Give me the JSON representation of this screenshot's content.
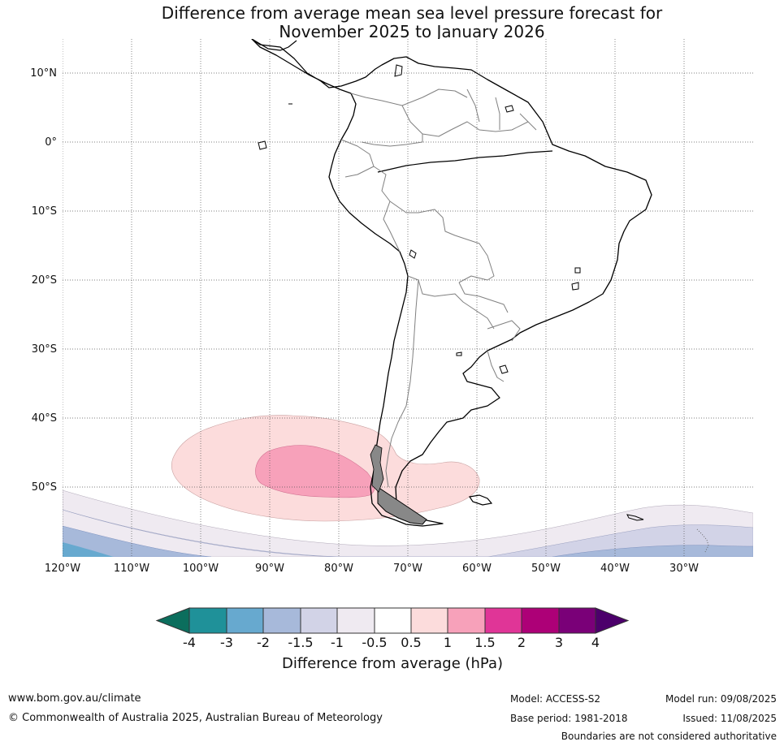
{
  "title": {
    "line1": "Difference from average mean sea level pressure forecast for",
    "line2": "November 2025 to January 2026"
  },
  "map": {
    "lat_labels": [
      "10°N",
      "0°",
      "10°S",
      "20°S",
      "30°S",
      "40°S",
      "50°S"
    ],
    "lon_labels": [
      "120°W",
      "110°W",
      "100°W",
      "90°W",
      "80°W",
      "70°W",
      "60°W",
      "50°W",
      "40°W",
      "30°W"
    ],
    "colors": {
      "pos_0_5_1": "#fcdcdc",
      "pos_1_1_5": "#f7a1ba",
      "neg_0_5_1": "#efeaf1",
      "neg_1_1_5": "#d2d3e7",
      "neg_1_5_2": "#a7b9da",
      "neg_2_3": "#67a9cf",
      "coast": "#000000",
      "borders": "#808080",
      "grid": "#555555"
    }
  },
  "colorbar": {
    "title": "Difference from average (hPa)",
    "ticks": [
      "-4",
      "-3",
      "-2",
      "-1.5",
      "-1",
      "-0.5",
      "0.5",
      "1",
      "1.5",
      "2",
      "3",
      "4"
    ],
    "colors": [
      "#0b6e5d",
      "#1f9199",
      "#67a9cf",
      "#a7b9da",
      "#d2d3e7",
      "#efeaf1",
      "#ffffff",
      "#fcdcdc",
      "#f7a1ba",
      "#e03597",
      "#ad0077",
      "#7a0078",
      "#4c006b"
    ]
  },
  "footer": {
    "website": "www.bom.gov.au/climate",
    "copyright": "© Commonwealth of Australia 2025, Australian Bureau of Meteorology",
    "model": "Model: ACCESS-S2",
    "base_period": "Base period: 1981-2018",
    "model_run": "Model run: 09/08/2025",
    "issued": "Issued: 11/08/2025",
    "disclaimer": "Boundaries are not considered authoritative"
  }
}
